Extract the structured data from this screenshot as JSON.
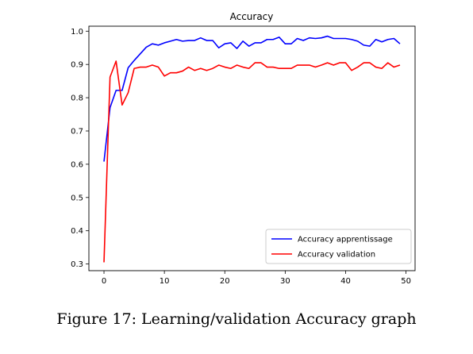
{
  "caption": "Figure 17: Learning/validation Accuracy graph",
  "chart_data": {
    "type": "line",
    "title": "Accuracy",
    "xlabel": "",
    "ylabel": "",
    "xlim": [
      -2.5,
      51.5
    ],
    "ylim": [
      0.28,
      1.015
    ],
    "xticks": [
      0,
      10,
      20,
      30,
      40,
      50
    ],
    "yticks": [
      0.3,
      0.4,
      0.5,
      0.6,
      0.7,
      0.8,
      0.9,
      1.0
    ],
    "xtick_labels": [
      "0",
      "10",
      "20",
      "30",
      "40",
      "50"
    ],
    "ytick_labels": [
      "0.3",
      "0.4",
      "0.5",
      "0.6",
      "0.7",
      "0.8",
      "0.9",
      "1.0"
    ],
    "grid": false,
    "legend_position": "lower-right",
    "x": [
      0,
      1,
      2,
      3,
      4,
      5,
      6,
      7,
      8,
      9,
      10,
      11,
      12,
      13,
      14,
      15,
      16,
      17,
      18,
      19,
      20,
      21,
      22,
      23,
      24,
      25,
      26,
      27,
      28,
      29,
      30,
      31,
      32,
      33,
      34,
      35,
      36,
      37,
      38,
      39,
      40,
      41,
      42,
      43,
      44,
      45,
      46,
      47,
      48,
      49
    ],
    "series": [
      {
        "name": "Accuracy apprentissage",
        "color": "#0000ff",
        "values": [
          0.608,
          0.77,
          0.822,
          0.822,
          0.89,
          0.912,
          0.932,
          0.952,
          0.962,
          0.958,
          0.965,
          0.97,
          0.975,
          0.97,
          0.972,
          0.972,
          0.98,
          0.972,
          0.972,
          0.95,
          0.962,
          0.965,
          0.948,
          0.97,
          0.955,
          0.965,
          0.965,
          0.975,
          0.975,
          0.982,
          0.962,
          0.962,
          0.978,
          0.972,
          0.98,
          0.978,
          0.98,
          0.985,
          0.978,
          0.978,
          0.978,
          0.975,
          0.97,
          0.958,
          0.955,
          0.975,
          0.968,
          0.975,
          0.978,
          0.962
        ]
      },
      {
        "name": "Accuracy validation",
        "color": "#ff0000",
        "values": [
          0.305,
          0.862,
          0.91,
          0.778,
          0.815,
          0.888,
          0.892,
          0.892,
          0.898,
          0.892,
          0.865,
          0.875,
          0.875,
          0.88,
          0.892,
          0.882,
          0.888,
          0.882,
          0.888,
          0.898,
          0.892,
          0.888,
          0.898,
          0.892,
          0.888,
          0.905,
          0.905,
          0.892,
          0.892,
          0.888,
          0.888,
          0.888,
          0.898,
          0.898,
          0.898,
          0.892,
          0.898,
          0.905,
          0.898,
          0.905,
          0.905,
          0.882,
          0.892,
          0.905,
          0.905,
          0.892,
          0.888,
          0.905,
          0.892,
          0.898
        ]
      }
    ]
  }
}
